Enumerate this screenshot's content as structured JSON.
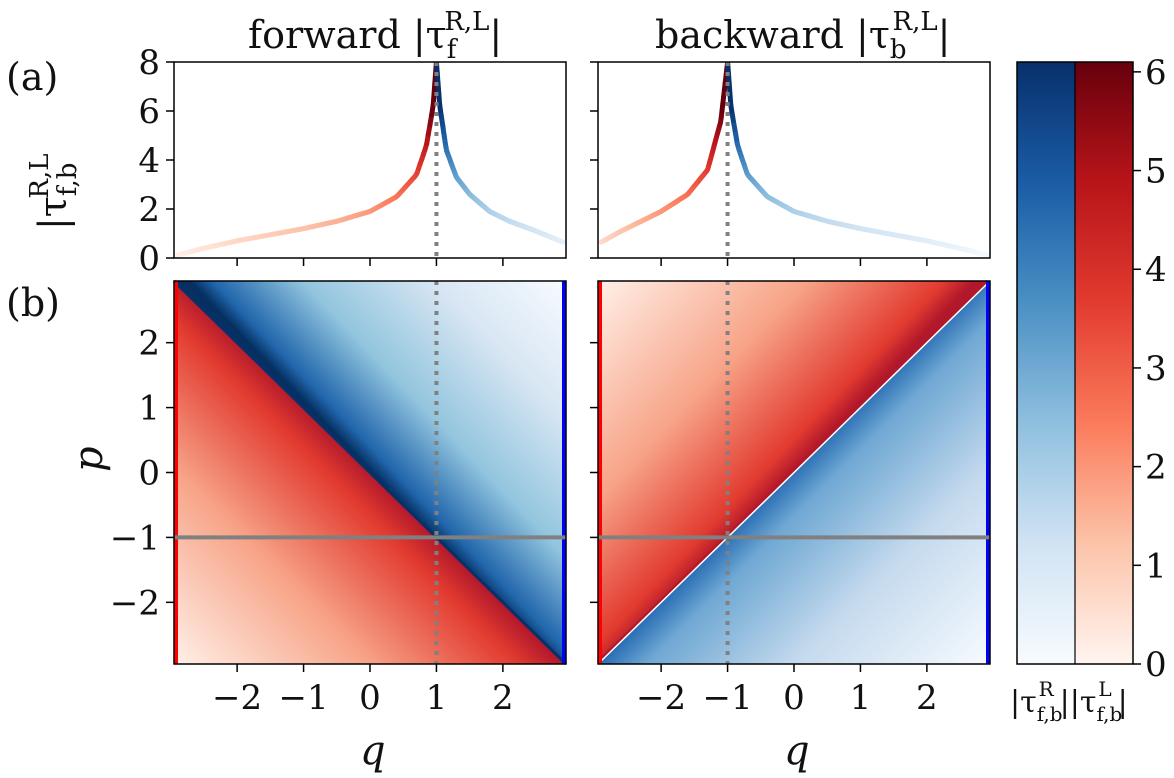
{
  "figure": {
    "panel_labels": [
      "(a)",
      "(b)"
    ],
    "titles": {
      "forward": "forward |τ_f^{R,L}|",
      "backward": "backward |τ_b^{R,L}|"
    },
    "forward_title_text": "forward |τ",
    "forward_title_sub": "f",
    "forward_title_sup": "R,L",
    "backward_title_text": "backward |τ",
    "backward_title_sub": "b",
    "backward_title_sup": "R,L",
    "title_close": "|",
    "ylabel_top_text": "|τ",
    "ylabel_top_sub": "f,b",
    "ylabel_top_sup": "R,L",
    "ylabel_bottom": "p",
    "xlabel": "q",
    "colorbar_label_left_text": "|τ",
    "colorbar_label_left_sub": "f,b",
    "colorbar_label_left_sup": "R",
    "colorbar_label_right_text": "||τ",
    "colorbar_label_right_sub": "f,b",
    "colorbar_label_right_sup": "L",
    "colorbar_label_close": "|"
  },
  "colors": {
    "right_mode": "#2166ac",
    "left_mode": "#d62728",
    "reference_line": "#808080",
    "edge_red": "#ff0000",
    "edge_blue": "#0000ff"
  },
  "chart_data": [
    {
      "id": "forward-top",
      "type": "line",
      "xlim": [
        -2.95,
        2.95
      ],
      "ylim": [
        0,
        8
      ],
      "yticks": [
        0,
        2,
        4,
        6,
        8
      ],
      "singularity_q": 1,
      "series": [
        {
          "x": [
            -2.9,
            -2.5,
            -2.0,
            -1.5,
            -1.0,
            -0.5,
            0.0,
            0.4,
            0.7,
            0.85,
            0.95,
            1.0
          ],
          "y": [
            0.12,
            0.4,
            0.7,
            0.95,
            1.2,
            1.5,
            1.9,
            2.5,
            3.4,
            4.6,
            6.2,
            8.0
          ]
        },
        {
          "x": [
            1.0,
            1.05,
            1.15,
            1.3,
            1.5,
            1.8,
            2.1,
            2.5,
            2.9
          ],
          "y": [
            8.0,
            6.2,
            4.4,
            3.3,
            2.6,
            1.9,
            1.5,
            1.1,
            0.65
          ]
        }
      ]
    },
    {
      "id": "backward-top",
      "type": "line",
      "xlim": [
        -2.95,
        2.95
      ],
      "ylim": [
        0,
        8
      ],
      "yticks": [
        0,
        2,
        4,
        6,
        8
      ],
      "singularity_q": -1,
      "series": [
        {
          "x": [
            -2.9,
            -2.6,
            -2.3,
            -2.0,
            -1.6,
            -1.3,
            -1.1,
            -1.0
          ],
          "y": [
            0.65,
            1.1,
            1.5,
            1.9,
            2.6,
            3.6,
            5.6,
            8.0
          ]
        },
        {
          "x": [
            -1.0,
            -0.95,
            -0.85,
            -0.7,
            -0.4,
            0.0,
            0.5,
            1.0,
            1.5,
            2.0,
            2.5,
            2.9
          ],
          "y": [
            8.0,
            6.2,
            4.6,
            3.4,
            2.5,
            1.9,
            1.5,
            1.2,
            0.95,
            0.7,
            0.4,
            0.12
          ]
        }
      ]
    },
    {
      "id": "forward-map",
      "type": "heatmap",
      "xlim": [
        -2.95,
        2.95
      ],
      "ylim": [
        -2.95,
        2.95
      ],
      "xticks": [
        -2,
        -1,
        0,
        1,
        2
      ],
      "yticks": [
        -2,
        -1,
        0,
        1,
        2
      ],
      "diagonal": "q+p=0",
      "p_line": -1,
      "q_line": 1
    },
    {
      "id": "backward-map",
      "type": "heatmap",
      "xlim": [
        -2.95,
        2.95
      ],
      "ylim": [
        -2.95,
        2.95
      ],
      "xticks": [
        -2,
        -1,
        0,
        1,
        2
      ],
      "yticks": [
        -2,
        -1,
        0,
        1,
        2
      ],
      "diagonal": "q-p=0",
      "p_line": -1,
      "q_line": -1
    },
    {
      "id": "colorbar",
      "type": "heatmap",
      "range": [
        0,
        6.1
      ],
      "ticks": [
        0,
        1,
        2,
        3,
        4,
        5,
        6
      ]
    }
  ]
}
